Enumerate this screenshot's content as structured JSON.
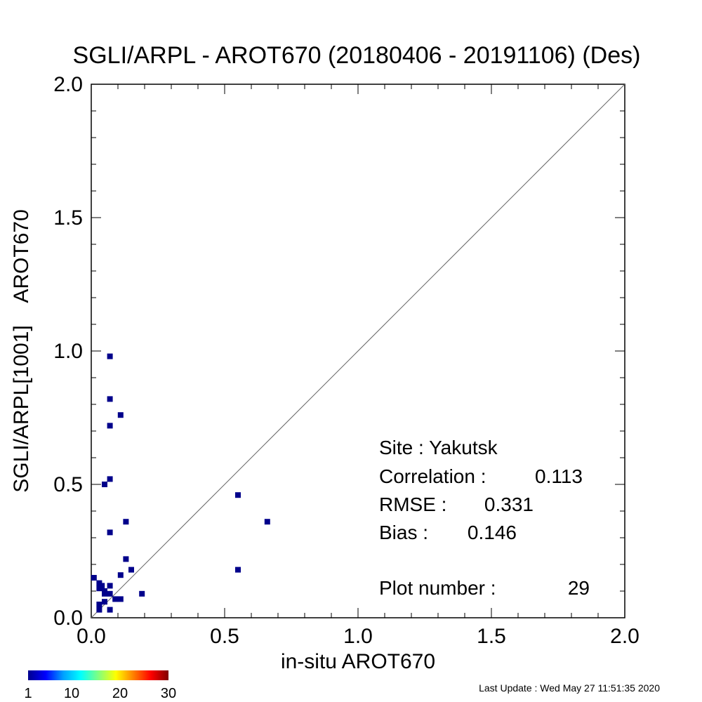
{
  "chart_data": {
    "type": "scatter",
    "title": "SGLI/ARPL - AROT670 (20180406 - 20191106) (Des)",
    "xlabel": "in-situ AROT670",
    "ylabel": "SGLI/ARPL[1001]    AROT670",
    "xlim": [
      0.0,
      2.0
    ],
    "ylim": [
      0.0,
      2.0
    ],
    "x_ticks": [
      "0.0",
      "0.5",
      "1.0",
      "1.5",
      "2.0"
    ],
    "y_ticks": [
      "0.0",
      "0.5",
      "1.0",
      "1.5",
      "2.0"
    ],
    "reference_line": "1:1",
    "grid": false,
    "marker_color": "#00008b",
    "points": [
      {
        "x": 0.07,
        "y": 0.98
      },
      {
        "x": 0.07,
        "y": 0.82
      },
      {
        "x": 0.11,
        "y": 0.76
      },
      {
        "x": 0.07,
        "y": 0.72
      },
      {
        "x": 0.07,
        "y": 0.52
      },
      {
        "x": 0.05,
        "y": 0.5
      },
      {
        "x": 0.55,
        "y": 0.46
      },
      {
        "x": 0.66,
        "y": 0.36
      },
      {
        "x": 0.13,
        "y": 0.36
      },
      {
        "x": 0.07,
        "y": 0.32
      },
      {
        "x": 0.13,
        "y": 0.22
      },
      {
        "x": 0.15,
        "y": 0.18
      },
      {
        "x": 0.55,
        "y": 0.18
      },
      {
        "x": 0.11,
        "y": 0.16
      },
      {
        "x": 0.01,
        "y": 0.15
      },
      {
        "x": 0.03,
        "y": 0.13
      },
      {
        "x": 0.04,
        "y": 0.12
      },
      {
        "x": 0.07,
        "y": 0.12
      },
      {
        "x": 0.03,
        "y": 0.11
      },
      {
        "x": 0.05,
        "y": 0.1
      },
      {
        "x": 0.05,
        "y": 0.09
      },
      {
        "x": 0.07,
        "y": 0.09
      },
      {
        "x": 0.19,
        "y": 0.09
      },
      {
        "x": 0.09,
        "y": 0.07
      },
      {
        "x": 0.11,
        "y": 0.07
      },
      {
        "x": 0.03,
        "y": 0.05
      },
      {
        "x": 0.03,
        "y": 0.03
      },
      {
        "x": 0.07,
        "y": 0.03
      },
      {
        "x": 0.05,
        "y": 0.06
      }
    ],
    "stats": {
      "site": "Site : Yakutsk",
      "correlation_label": "Correlation :",
      "correlation_value": "0.113",
      "rmse_label": "RMSE :",
      "rmse_value": "0.331",
      "bias_label": "Bias :",
      "bias_value": "0.146",
      "plot_number_label": "Plot number :",
      "plot_number_value": "29"
    },
    "colorbar": {
      "range": [
        1,
        30
      ],
      "tick_labels": [
        "1",
        "10",
        "20",
        "30"
      ],
      "colors": [
        "#00008f",
        "#0000ff",
        "#00a0ff",
        "#00ffff",
        "#80ff80",
        "#ffff00",
        "#ff8000",
        "#ff0000",
        "#800000"
      ]
    }
  },
  "footer": {
    "last_update": "Last Update : Wed May 27 11:51:35 2020"
  }
}
